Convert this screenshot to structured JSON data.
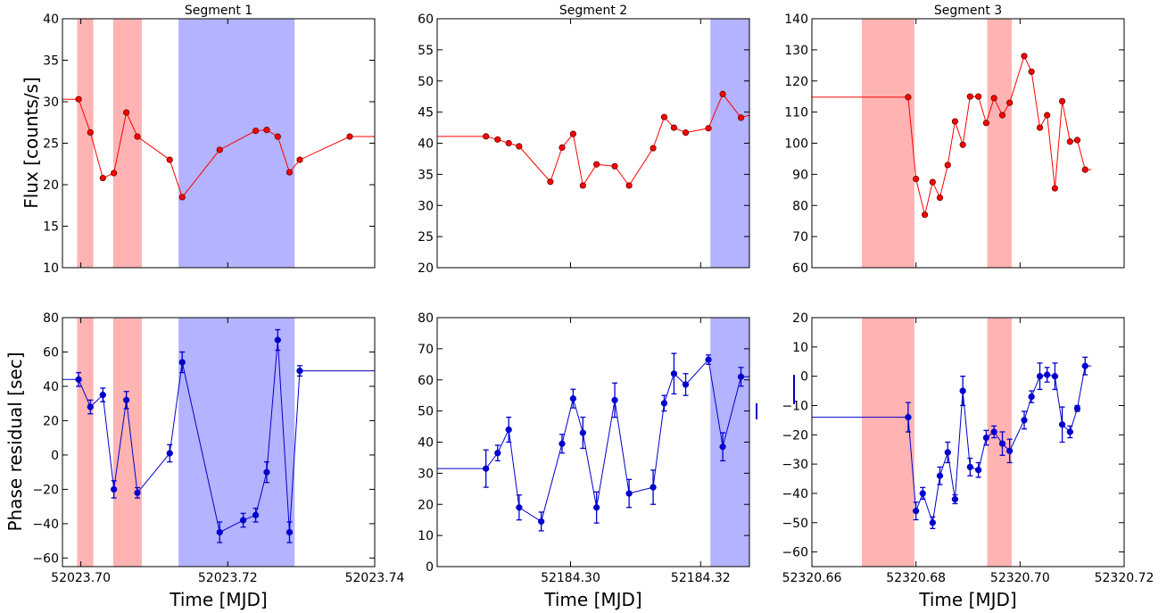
{
  "figure": {
    "shared_ylabels": [
      "Flux [counts/s]",
      "Phase residual [sec]"
    ],
    "shared_xlabel": "Time [MJD]"
  },
  "colors": {
    "flux": "#ff0000",
    "residual": "#0000cc",
    "red_band": "#ffb3b3",
    "blue_band": "#b3b3ff"
  },
  "chart_data": [
    {
      "type": "line",
      "panel": "seg1-flux",
      "title": "Segment 1",
      "ylabel": "Flux [counts/s]",
      "xlabel": "",
      "xlim": [
        52023.6975,
        52023.74
      ],
      "ylim": [
        10,
        40
      ],
      "xticks": [],
      "yticks": [
        10,
        15,
        20,
        25,
        30,
        35,
        40
      ],
      "yticklabels": [
        "10",
        "15",
        "20",
        "25",
        "30",
        "35",
        "40"
      ],
      "bands": [
        {
          "color": "red",
          "x0": 52023.6995,
          "x1": 52023.7017
        },
        {
          "color": "red",
          "x0": 52023.7044,
          "x1": 52023.7083
        },
        {
          "color": "blue",
          "x0": 52023.7133,
          "x1": 52023.7291
        }
      ],
      "series": [
        {
          "x": [
            52023.6975,
            52023.6997,
            52023.7013,
            52023.703,
            52023.7045,
            52023.7062,
            52023.7077,
            52023.7121,
            52023.7138,
            52023.7189,
            52023.7238,
            52023.7253,
            52023.7268,
            52023.7284,
            52023.7298,
            52023.7366,
            52023.74
          ],
          "y": [
            30.3,
            30.3,
            26.3,
            20.8,
            21.4,
            28.7,
            25.8,
            23.0,
            18.5,
            24.2,
            26.5,
            26.6,
            25.8,
            21.5,
            23.0,
            25.8,
            25.8
          ],
          "markers": [
            false,
            true,
            true,
            true,
            true,
            true,
            true,
            true,
            true,
            true,
            true,
            true,
            true,
            true,
            true,
            true,
            false
          ]
        }
      ]
    },
    {
      "type": "line",
      "panel": "seg2-flux",
      "title": "Segment 2",
      "ylabel": "",
      "xlabel": "",
      "xlim": [
        52184.2795,
        52184.3275
      ],
      "ylim": [
        20,
        60
      ],
      "xticks": [],
      "yticks": [
        20,
        25,
        30,
        35,
        40,
        45,
        50,
        55,
        60
      ],
      "yticklabels": [
        "20",
        "25",
        "30",
        "35",
        "40",
        "45",
        "50",
        "55",
        "60"
      ],
      "bands": [
        {
          "color": "blue",
          "x0": 52184.3215,
          "x1": 52184.3275
        }
      ],
      "series": [
        {
          "x": [
            52184.2795,
            52184.287,
            52184.2888,
            52184.2905,
            52184.2921,
            52184.2969,
            52184.2987,
            52184.3004,
            52184.3019,
            52184.304,
            52184.3068,
            52184.309,
            52184.3127,
            52184.3144,
            52184.3159,
            52184.3177,
            52184.3212,
            52184.3234,
            52184.3262,
            52184.3275
          ],
          "y": [
            41.1,
            41.1,
            40.6,
            40.0,
            39.5,
            33.8,
            39.3,
            41.5,
            33.2,
            36.6,
            36.3,
            33.2,
            39.2,
            44.2,
            42.5,
            41.7,
            42.4,
            47.9,
            44.1,
            44.5
          ],
          "markers": [
            false,
            true,
            true,
            true,
            true,
            true,
            true,
            true,
            true,
            true,
            true,
            true,
            true,
            true,
            true,
            true,
            true,
            true,
            true,
            false
          ]
        }
      ]
    },
    {
      "type": "line",
      "panel": "seg3-flux",
      "title": "Segment 3",
      "ylabel": "",
      "xlabel": "",
      "xlim": [
        52320.66,
        52320.72
      ],
      "ylim": [
        60,
        140
      ],
      "xticks": [],
      "yticks": [
        60,
        70,
        80,
        90,
        100,
        110,
        120,
        130,
        140
      ],
      "yticklabels": [
        "60",
        "70",
        "80",
        "90",
        "100",
        "110",
        "120",
        "130",
        "140"
      ],
      "bands": [
        {
          "color": "red",
          "x0": 52320.6696,
          "x1": 52320.6797
        },
        {
          "color": "red",
          "x0": 52320.6937,
          "x1": 52320.6984
        }
      ],
      "series": [
        {
          "x": [
            52320.66,
            52320.6785,
            52320.68,
            52320.6817,
            52320.6832,
            52320.6846,
            52320.6861,
            52320.6875,
            52320.689,
            52320.6904,
            52320.692,
            52320.6935,
            52320.695,
            52320.6966,
            52320.698,
            52320.7008,
            52320.7022,
            52320.7038,
            52320.7052,
            52320.7067,
            52320.7081,
            52320.7096,
            52320.711,
            52320.7125,
            52320.7137
          ],
          "y": [
            114.8,
            114.8,
            88.5,
            77.0,
            87.5,
            82.5,
            93.0,
            107.0,
            99.5,
            115.0,
            115.0,
            106.5,
            114.5,
            109.0,
            113.0,
            128.0,
            123.0,
            105.0,
            109.0,
            85.5,
            113.5,
            100.5,
            101.0,
            91.5,
            91.5
          ],
          "markers": [
            false,
            true,
            true,
            true,
            true,
            true,
            true,
            true,
            true,
            true,
            true,
            true,
            true,
            true,
            true,
            true,
            true,
            true,
            true,
            true,
            true,
            true,
            true,
            true,
            false
          ]
        }
      ]
    },
    {
      "type": "line",
      "panel": "seg1-residual",
      "title": "",
      "ylabel": "Phase residual [sec]",
      "xlabel": "Time [MJD]",
      "xlim": [
        52023.6975,
        52023.74
      ],
      "ylim": [
        -65,
        80
      ],
      "xticks": [
        52023.7,
        52023.72,
        52023.74
      ],
      "xticklabels": [
        "52023.70",
        "52023.72",
        "52023.74"
      ],
      "yticks": [
        -60,
        -40,
        -20,
        0,
        20,
        40,
        60,
        80
      ],
      "yticklabels": [
        "−60",
        "−40",
        "−20",
        "0",
        "20",
        "40",
        "60",
        "80"
      ],
      "bands": [
        {
          "color": "red",
          "x0": 52023.6995,
          "x1": 52023.7017
        },
        {
          "color": "red",
          "x0": 52023.7044,
          "x1": 52023.7083
        },
        {
          "color": "blue",
          "x0": 52023.7133,
          "x1": 52023.7291
        }
      ],
      "series": [
        {
          "x": [
            52023.6975,
            52023.6997,
            52023.7013,
            52023.703,
            52023.7045,
            52023.7062,
            52023.7077,
            52023.7121,
            52023.7138,
            52023.7189,
            52023.7221,
            52023.7238,
            52023.7253,
            52023.7268,
            52023.7284,
            52023.7298,
            52023.7366,
            52023.74
          ],
          "y": [
            44,
            44,
            28,
            35,
            -20,
            32,
            -22,
            1,
            54,
            -45,
            -38,
            -35,
            -10,
            67,
            -45,
            49,
            49,
            49
          ],
          "yerr": [
            0,
            4,
            4,
            4,
            5,
            5,
            3,
            5,
            6,
            6,
            4,
            4,
            6,
            6,
            6,
            3,
            3,
            0
          ],
          "markers": [
            false,
            true,
            true,
            true,
            true,
            true,
            true,
            true,
            true,
            true,
            true,
            true,
            true,
            true,
            true,
            true,
            false,
            false
          ]
        }
      ]
    },
    {
      "type": "line",
      "panel": "seg2-residual",
      "title": "",
      "ylabel": "",
      "xlabel": "Time [MJD]",
      "xlim": [
        52184.2795,
        52184.3275
      ],
      "ylim": [
        0,
        80
      ],
      "xticks": [
        52184.3,
        52184.32
      ],
      "xticklabels": [
        "52184.30",
        "52184.32"
      ],
      "yticks": [
        0,
        10,
        20,
        30,
        40,
        50,
        60,
        70,
        80
      ],
      "yticklabels": [
        "0",
        "10",
        "20",
        "30",
        "40",
        "50",
        "60",
        "70",
        "80"
      ],
      "bands": [
        {
          "color": "blue",
          "x0": 52184.3215,
          "x1": 52184.3275
        }
      ],
      "series": [
        {
          "x": [
            52184.2795,
            52184.287,
            52184.2888,
            52184.2905,
            52184.2921,
            52184.2955,
            52184.2987,
            52184.3004,
            52184.3019,
            52184.304,
            52184.3068,
            52184.309,
            52184.3127,
            52184.3144,
            52184.3159,
            52184.3177,
            52184.3212,
            52184.3234,
            52184.3262,
            52184.3275
          ],
          "y": [
            31.5,
            31.5,
            36.5,
            44.0,
            19.0,
            14.5,
            39.5,
            54.0,
            43.0,
            19.0,
            53.5,
            23.5,
            25.5,
            52.5,
            62.0,
            58.5,
            66.5,
            38.5,
            61.0,
            61.0
          ],
          "yerr": [
            0,
            6,
            2.5,
            4,
            4,
            3,
            3,
            3,
            5,
            5,
            5.5,
            4.5,
            5.5,
            2.5,
            6.5,
            3.5,
            1.5,
            4.5,
            3,
            0
          ],
          "markers": [
            false,
            true,
            true,
            true,
            true,
            true,
            true,
            true,
            true,
            true,
            true,
            true,
            true,
            true,
            true,
            true,
            true,
            true,
            true,
            false
          ]
        }
      ]
    },
    {
      "type": "line",
      "panel": "seg3-residual",
      "title": "",
      "ylabel": "",
      "xlabel": "Time [MJD]",
      "xlim": [
        52320.66,
        52320.72
      ],
      "ylim": [
        -65,
        20
      ],
      "xticks": [
        52320.66,
        52320.68,
        52320.7,
        52320.72
      ],
      "xticklabels": [
        "52320.66",
        "52320.68",
        "52320.70",
        "52320.72"
      ],
      "yticks": [
        -60,
        -50,
        -40,
        -30,
        -20,
        -10,
        0,
        10,
        20
      ],
      "yticklabels": [
        "−60",
        "−50",
        "−40",
        "−30",
        "−20",
        "−10",
        "0",
        "10",
        "20"
      ],
      "bands": [
        {
          "color": "red",
          "x0": 52320.6696,
          "x1": 52320.6797
        },
        {
          "color": "red",
          "x0": 52320.6937,
          "x1": 52320.6984
        }
      ],
      "series": [
        {
          "x": [
            52320.66,
            52320.6785,
            52320.68,
            52320.6813,
            52320.6832,
            52320.6846,
            52320.6861,
            52320.6875,
            52320.689,
            52320.6904,
            52320.692,
            52320.6935,
            52320.695,
            52320.6966,
            52320.698,
            52320.7008,
            52320.7022,
            52320.7038,
            52320.7052,
            52320.7067,
            52320.7081,
            52320.7096,
            52320.711,
            52320.7125,
            52320.7137
          ],
          "y": [
            -14,
            -14,
            -46,
            -40,
            -50,
            -34,
            -26,
            -42,
            -5,
            -31,
            -32,
            -21,
            -19,
            -23,
            -25.5,
            -15,
            -7,
            0,
            0.5,
            0,
            -16.5,
            -19,
            -11,
            3.5,
            3.5
          ],
          "yerr": [
            0,
            5,
            3,
            2,
            2,
            3,
            3.5,
            1.5,
            5,
            3,
            2.5,
            2.5,
            2,
            4,
            4,
            3,
            2,
            4.5,
            2.5,
            4.5,
            6,
            2,
            1,
            3,
            0
          ],
          "markers": [
            false,
            true,
            true,
            true,
            true,
            true,
            true,
            true,
            true,
            true,
            true,
            true,
            true,
            true,
            true,
            true,
            true,
            true,
            true,
            true,
            true,
            true,
            true,
            true,
            false
          ]
        }
      ]
    }
  ]
}
